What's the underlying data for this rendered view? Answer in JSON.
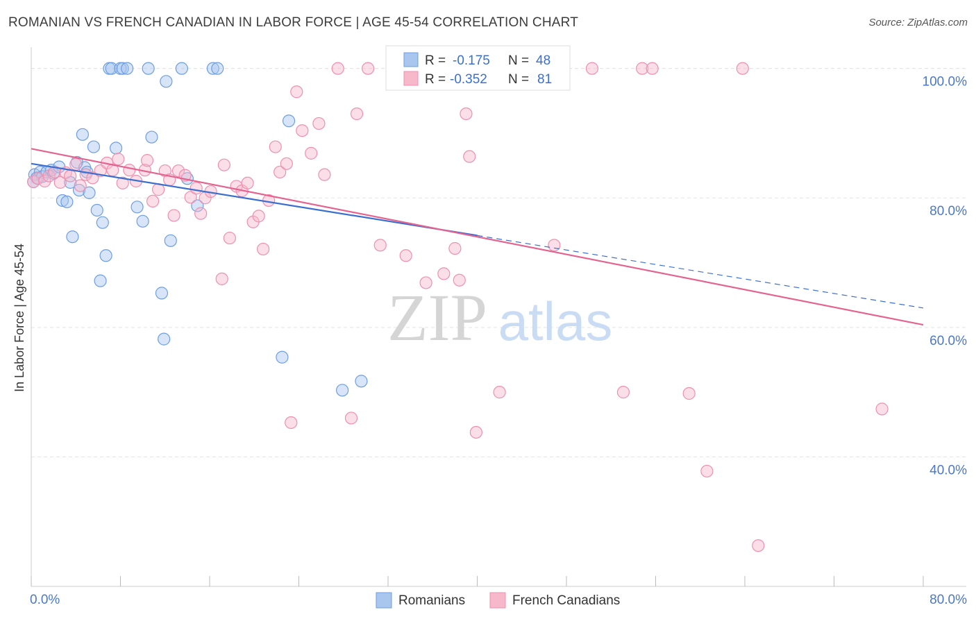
{
  "title": "ROMANIAN VS FRENCH CANADIAN IN LABOR FORCE | AGE 45-54 CORRELATION CHART",
  "source": "Source: ZipAtlas.com",
  "watermark": {
    "zip": "ZIP",
    "atlas": "atlas"
  },
  "chart_data": {
    "type": "scatter",
    "ylabel": "In Labor Force | Age 45-54",
    "xlim": [
      0,
      80
    ],
    "ylim": [
      20,
      102
    ],
    "x_tick_labels": [
      "0.0%",
      "80.0%"
    ],
    "y_ticks": [
      {
        "value": 100,
        "label": "100.0%"
      },
      {
        "value": 80,
        "label": "80.0%"
      },
      {
        "value": 60,
        "label": "60.0%"
      },
      {
        "value": 40,
        "label": "40.0%"
      }
    ],
    "grid": true,
    "legend_position": "bottom-center",
    "stats_box": [
      {
        "r_label": "R = ",
        "r": "-0.175",
        "n_label": "N = ",
        "n": "48",
        "color": "#a9c6ef"
      },
      {
        "r_label": "R = ",
        "r": "-0.352",
        "n_label": "N = ",
        "n": "81",
        "color": "#f7b8cc"
      }
    ],
    "series": [
      {
        "name": "Romanians",
        "color": "#a9c6ef",
        "edge": "#6d9ee0",
        "trend": {
          "x": [
            0,
            40
          ],
          "y": [
            85.3,
            74.2
          ],
          "dashed_to": [
            80,
            63.0
          ],
          "color": "#3a6fd0"
        },
        "points": [
          [
            0.3,
            83.6
          ],
          [
            0.5,
            83.1
          ],
          [
            0.8,
            84.0
          ],
          [
            1.0,
            83.3
          ],
          [
            1.4,
            84.0
          ],
          [
            1.8,
            84.3
          ],
          [
            2.0,
            83.8
          ],
          [
            2.5,
            84.8
          ],
          [
            2.8,
            79.6
          ],
          [
            3.2,
            79.4
          ],
          [
            3.5,
            82.4
          ],
          [
            3.7,
            74.0
          ],
          [
            4.1,
            85.5
          ],
          [
            4.3,
            81.2
          ],
          [
            4.6,
            89.8
          ],
          [
            4.8,
            84.7
          ],
          [
            5.0,
            84.0
          ],
          [
            5.2,
            80.8
          ],
          [
            5.6,
            87.9
          ],
          [
            5.9,
            78.1
          ],
          [
            6.2,
            67.2
          ],
          [
            6.4,
            76.2
          ],
          [
            6.7,
            71.1
          ],
          [
            7.0,
            100.0
          ],
          [
            7.2,
            100.0
          ],
          [
            7.6,
            87.7
          ],
          [
            8.0,
            100.0
          ],
          [
            8.2,
            100.0
          ],
          [
            8.6,
            100.0
          ],
          [
            9.5,
            78.6
          ],
          [
            10.0,
            76.4
          ],
          [
            10.5,
            100.0
          ],
          [
            10.8,
            89.4
          ],
          [
            11.7,
            65.3
          ],
          [
            11.9,
            58.2
          ],
          [
            12.1,
            98.0
          ],
          [
            12.5,
            73.4
          ],
          [
            13.5,
            100.0
          ],
          [
            14.0,
            83.0
          ],
          [
            14.9,
            78.8
          ],
          [
            16.3,
            100.0
          ],
          [
            16.7,
            100.0
          ],
          [
            22.5,
            55.4
          ],
          [
            23.1,
            91.9
          ],
          [
            27.9,
            50.3
          ],
          [
            29.6,
            51.7
          ],
          [
            32.6,
            100.0
          ],
          [
            0.2,
            82.5
          ]
        ]
      },
      {
        "name": "French Canadians",
        "color": "#f7b8cc",
        "edge": "#ee8fae",
        "trend": {
          "x": [
            0,
            80
          ],
          "y": [
            87.6,
            60.4
          ],
          "color": "#e4638f"
        },
        "points": [
          [
            0.2,
            82.5
          ],
          [
            0.6,
            83.0
          ],
          [
            1.2,
            82.6
          ],
          [
            1.6,
            83.4
          ],
          [
            2.1,
            84.0
          ],
          [
            2.6,
            82.4
          ],
          [
            3.1,
            83.9
          ],
          [
            3.5,
            83.4
          ],
          [
            4.0,
            85.2
          ],
          [
            4.4,
            81.9
          ],
          [
            4.9,
            83.6
          ],
          [
            5.5,
            83.1
          ],
          [
            6.2,
            84.2
          ],
          [
            6.8,
            85.4
          ],
          [
            7.3,
            84.3
          ],
          [
            7.8,
            86.0
          ],
          [
            8.2,
            82.3
          ],
          [
            8.8,
            84.3
          ],
          [
            9.4,
            82.6
          ],
          [
            10.2,
            84.3
          ],
          [
            10.4,
            85.8
          ],
          [
            10.9,
            79.5
          ],
          [
            11.4,
            81.3
          ],
          [
            12.0,
            84.2
          ],
          [
            12.4,
            82.8
          ],
          [
            12.8,
            77.3
          ],
          [
            13.2,
            84.2
          ],
          [
            13.8,
            83.5
          ],
          [
            14.3,
            80.1
          ],
          [
            14.8,
            81.5
          ],
          [
            15.2,
            77.6
          ],
          [
            15.6,
            80.0
          ],
          [
            16.1,
            81.0
          ],
          [
            17.1,
            67.5
          ],
          [
            17.3,
            85.1
          ],
          [
            17.8,
            73.8
          ],
          [
            18.4,
            81.8
          ],
          [
            18.9,
            81.1
          ],
          [
            19.4,
            82.3
          ],
          [
            19.9,
            76.3
          ],
          [
            20.4,
            77.2
          ],
          [
            20.8,
            72.1
          ],
          [
            21.3,
            79.6
          ],
          [
            21.9,
            87.9
          ],
          [
            22.3,
            84.0
          ],
          [
            22.9,
            85.3
          ],
          [
            23.3,
            45.3
          ],
          [
            23.8,
            96.4
          ],
          [
            24.3,
            90.4
          ],
          [
            25.1,
            86.9
          ],
          [
            25.8,
            91.5
          ],
          [
            26.3,
            83.6
          ],
          [
            27.5,
            100.0
          ],
          [
            28.7,
            46.0
          ],
          [
            29.2,
            93.0
          ],
          [
            30.2,
            100.0
          ],
          [
            31.3,
            72.7
          ],
          [
            32.8,
            100.0
          ],
          [
            33.6,
            71.1
          ],
          [
            35.4,
            66.9
          ],
          [
            36.2,
            100.0
          ],
          [
            37.0,
            68.3
          ],
          [
            38.0,
            72.2
          ],
          [
            38.4,
            67.3
          ],
          [
            39.0,
            93.0
          ],
          [
            39.3,
            86.4
          ],
          [
            40.0,
            100.0
          ],
          [
            39.9,
            43.8
          ],
          [
            42.0,
            50.0
          ],
          [
            45.0,
            100.0
          ],
          [
            46.9,
            72.7
          ],
          [
            46.4,
            100.0
          ],
          [
            50.3,
            100.0
          ],
          [
            53.1,
            50.0
          ],
          [
            54.8,
            100.0
          ],
          [
            55.7,
            100.0
          ],
          [
            59.0,
            49.8
          ],
          [
            60.6,
            37.8
          ],
          [
            63.8,
            100.0
          ],
          [
            65.2,
            26.3
          ],
          [
            76.3,
            47.4
          ]
        ]
      }
    ]
  }
}
